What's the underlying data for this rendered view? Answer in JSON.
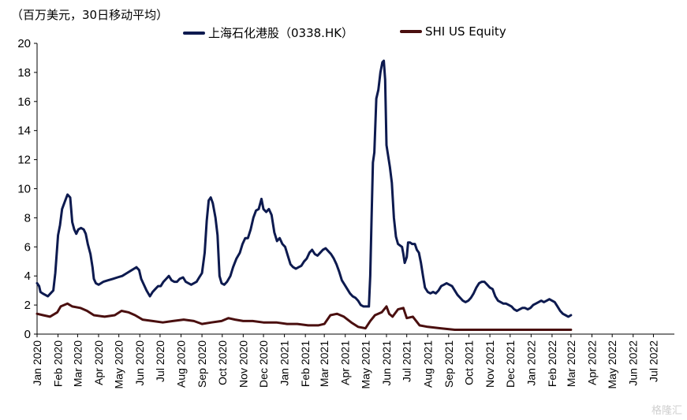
{
  "unit_label": "（百万美元，30日移动平均）",
  "watermark": "格隆汇",
  "chart_data": {
    "type": "line",
    "ylim": [
      0,
      20
    ],
    "yticks": [
      0,
      2,
      4,
      6,
      8,
      10,
      12,
      14,
      16,
      18,
      20
    ],
    "xlim": [
      "2020-01-01",
      "2022-08-01"
    ],
    "grid": false,
    "legend_position": "top",
    "x_tick_labels": [
      "Jan 2020",
      "Feb 2020",
      "Mar 2020",
      "Apr 2020",
      "May 2020",
      "Jun 2020",
      "Jul 2020",
      "Aug 2020",
      "Sep 2020",
      "Oct 2020",
      "Nov 2020",
      "Dec 2020",
      "Jan 2021",
      "Feb 2021",
      "Mar 2021",
      "Apr 2021",
      "May 2021",
      "Jun 2021",
      "Jul 2021",
      "Aug 2021",
      "Sep 2021",
      "Oct 2021",
      "Nov 2021",
      "Dec 2021",
      "Jan 2022",
      "Feb 2022",
      "Mar 2022",
      "Apr 2022",
      "May 2022",
      "Jun 2022",
      "Jul 2022"
    ],
    "x_tick_dates": [
      "2020-01-01",
      "2020-02-01",
      "2020-03-01",
      "2020-04-01",
      "2020-05-01",
      "2020-06-01",
      "2020-07-01",
      "2020-08-01",
      "2020-09-01",
      "2020-10-01",
      "2020-11-01",
      "2020-12-01",
      "2021-01-01",
      "2021-02-01",
      "2021-03-01",
      "2021-04-01",
      "2021-05-01",
      "2021-06-01",
      "2021-07-01",
      "2021-08-01",
      "2021-09-01",
      "2021-10-01",
      "2021-11-01",
      "2021-12-01",
      "2022-01-01",
      "2022-02-01",
      "2022-03-01",
      "2022-04-01",
      "2022-05-01",
      "2022-06-01",
      "2022-07-01"
    ],
    "series": [
      {
        "name": "上海石化港股（0338.HK）",
        "color": "#0d1a4f",
        "points": [
          [
            "2020-01-01",
            3.5
          ],
          [
            "2020-01-04",
            3.3
          ],
          [
            "2020-01-06",
            2.9
          ],
          [
            "2020-01-09",
            2.8
          ],
          [
            "2020-01-13",
            2.7
          ],
          [
            "2020-01-17",
            2.6
          ],
          [
            "2020-01-21",
            2.8
          ],
          [
            "2020-01-25",
            3.0
          ],
          [
            "2020-01-28",
            4.2
          ],
          [
            "2020-02-01",
            6.8
          ],
          [
            "2020-02-04",
            7.5
          ],
          [
            "2020-02-07",
            8.6
          ],
          [
            "2020-02-11",
            9.1
          ],
          [
            "2020-02-15",
            9.6
          ],
          [
            "2020-02-19",
            9.4
          ],
          [
            "2020-02-22",
            7.7
          ],
          [
            "2020-02-25",
            7.2
          ],
          [
            "2020-02-28",
            6.9
          ],
          [
            "2020-03-02",
            7.2
          ],
          [
            "2020-03-06",
            7.3
          ],
          [
            "2020-03-10",
            7.2
          ],
          [
            "2020-03-13",
            6.9
          ],
          [
            "2020-03-16",
            6.2
          ],
          [
            "2020-03-20",
            5.5
          ],
          [
            "2020-03-23",
            4.6
          ],
          [
            "2020-03-25",
            3.8
          ],
          [
            "2020-03-28",
            3.5
          ],
          [
            "2020-04-01",
            3.4
          ],
          [
            "2020-04-08",
            3.6
          ],
          [
            "2020-04-15",
            3.7
          ],
          [
            "2020-04-22",
            3.8
          ],
          [
            "2020-04-29",
            3.9
          ],
          [
            "2020-05-06",
            4.0
          ],
          [
            "2020-05-13",
            4.2
          ],
          [
            "2020-05-20",
            4.4
          ],
          [
            "2020-05-27",
            4.6
          ],
          [
            "2020-05-31",
            4.4
          ],
          [
            "2020-06-03",
            3.8
          ],
          [
            "2020-06-07",
            3.4
          ],
          [
            "2020-06-11",
            3.0
          ],
          [
            "2020-06-16",
            2.6
          ],
          [
            "2020-06-20",
            2.9
          ],
          [
            "2020-06-24",
            3.1
          ],
          [
            "2020-06-28",
            3.3
          ],
          [
            "2020-07-02",
            3.3
          ],
          [
            "2020-07-06",
            3.6
          ],
          [
            "2020-07-10",
            3.8
          ],
          [
            "2020-07-14",
            4.0
          ],
          [
            "2020-07-18",
            3.7
          ],
          [
            "2020-07-22",
            3.6
          ],
          [
            "2020-07-26",
            3.6
          ],
          [
            "2020-07-30",
            3.8
          ],
          [
            "2020-08-04",
            3.9
          ],
          [
            "2020-08-08",
            3.6
          ],
          [
            "2020-08-12",
            3.5
          ],
          [
            "2020-08-16",
            3.4
          ],
          [
            "2020-08-20",
            3.5
          ],
          [
            "2020-08-24",
            3.6
          ],
          [
            "2020-08-28",
            3.9
          ],
          [
            "2020-09-01",
            4.2
          ],
          [
            "2020-09-05",
            5.6
          ],
          [
            "2020-09-08",
            7.8
          ],
          [
            "2020-09-11",
            9.2
          ],
          [
            "2020-09-14",
            9.4
          ],
          [
            "2020-09-17",
            9.0
          ],
          [
            "2020-09-21",
            8.0
          ],
          [
            "2020-09-24",
            6.8
          ],
          [
            "2020-09-27",
            4.0
          ],
          [
            "2020-09-30",
            3.5
          ],
          [
            "2020-10-04",
            3.4
          ],
          [
            "2020-10-08",
            3.6
          ],
          [
            "2020-10-13",
            4.0
          ],
          [
            "2020-10-17",
            4.6
          ],
          [
            "2020-10-22",
            5.2
          ],
          [
            "2020-10-27",
            5.6
          ],
          [
            "2020-10-31",
            6.2
          ],
          [
            "2020-11-04",
            6.6
          ],
          [
            "2020-11-08",
            6.6
          ],
          [
            "2020-11-12",
            7.2
          ],
          [
            "2020-11-16",
            8.0
          ],
          [
            "2020-11-20",
            8.5
          ],
          [
            "2020-11-24",
            8.6
          ],
          [
            "2020-11-28",
            9.3
          ],
          [
            "2020-12-01",
            8.6
          ],
          [
            "2020-12-05",
            8.4
          ],
          [
            "2020-12-09",
            8.6
          ],
          [
            "2020-12-13",
            8.2
          ],
          [
            "2020-12-17",
            7.0
          ],
          [
            "2020-12-21",
            6.4
          ],
          [
            "2020-12-25",
            6.6
          ],
          [
            "2020-12-29",
            6.2
          ],
          [
            "2021-01-02",
            6.0
          ],
          [
            "2021-01-06",
            5.4
          ],
          [
            "2021-01-10",
            4.8
          ],
          [
            "2021-01-14",
            4.6
          ],
          [
            "2021-01-18",
            4.5
          ],
          [
            "2021-01-22",
            4.6
          ],
          [
            "2021-01-26",
            4.7
          ],
          [
            "2021-01-30",
            5.0
          ],
          [
            "2021-02-03",
            5.2
          ],
          [
            "2021-02-07",
            5.6
          ],
          [
            "2021-02-11",
            5.8
          ],
          [
            "2021-02-15",
            5.5
          ],
          [
            "2021-02-19",
            5.4
          ],
          [
            "2021-02-23",
            5.6
          ],
          [
            "2021-02-27",
            5.8
          ],
          [
            "2021-03-03",
            5.9
          ],
          [
            "2021-03-07",
            5.7
          ],
          [
            "2021-03-11",
            5.5
          ],
          [
            "2021-03-15",
            5.2
          ],
          [
            "2021-03-19",
            4.8
          ],
          [
            "2021-03-23",
            4.3
          ],
          [
            "2021-03-27",
            3.7
          ],
          [
            "2021-03-31",
            3.4
          ],
          [
            "2021-04-04",
            3.1
          ],
          [
            "2021-04-08",
            2.8
          ],
          [
            "2021-04-12",
            2.6
          ],
          [
            "2021-04-16",
            2.5
          ],
          [
            "2021-04-20",
            2.3
          ],
          [
            "2021-04-24",
            2.0
          ],
          [
            "2021-04-28",
            1.9
          ],
          [
            "2021-05-02",
            1.9
          ],
          [
            "2021-05-06",
            1.9
          ],
          [
            "2021-05-08",
            4.0
          ],
          [
            "2021-05-10",
            8.0
          ],
          [
            "2021-05-12",
            11.8
          ],
          [
            "2021-05-14",
            12.5
          ],
          [
            "2021-05-17",
            16.2
          ],
          [
            "2021-05-20",
            16.8
          ],
          [
            "2021-05-23",
            18.0
          ],
          [
            "2021-05-26",
            18.7
          ],
          [
            "2021-05-28",
            18.8
          ],
          [
            "2021-05-30",
            17.5
          ],
          [
            "2021-06-01",
            13.0
          ],
          [
            "2021-06-03",
            12.4
          ],
          [
            "2021-06-06",
            11.5
          ],
          [
            "2021-06-09",
            10.4
          ],
          [
            "2021-06-12",
            8.0
          ],
          [
            "2021-06-15",
            6.7
          ],
          [
            "2021-06-18",
            6.2
          ],
          [
            "2021-06-21",
            6.1
          ],
          [
            "2021-06-24",
            6.0
          ],
          [
            "2021-06-26",
            5.5
          ],
          [
            "2021-06-28",
            4.9
          ],
          [
            "2021-07-01",
            5.3
          ],
          [
            "2021-07-03",
            6.3
          ],
          [
            "2021-07-06",
            6.3
          ],
          [
            "2021-07-09",
            6.2
          ],
          [
            "2021-07-13",
            6.2
          ],
          [
            "2021-07-16",
            5.8
          ],
          [
            "2021-07-19",
            5.6
          ],
          [
            "2021-07-22",
            4.9
          ],
          [
            "2021-07-25",
            4.0
          ],
          [
            "2021-07-28",
            3.2
          ],
          [
            "2021-08-01",
            2.9
          ],
          [
            "2021-08-05",
            2.8
          ],
          [
            "2021-08-09",
            2.9
          ],
          [
            "2021-08-13",
            2.8
          ],
          [
            "2021-08-17",
            3.0
          ],
          [
            "2021-08-21",
            3.3
          ],
          [
            "2021-08-25",
            3.4
          ],
          [
            "2021-08-29",
            3.5
          ],
          [
            "2021-09-02",
            3.4
          ],
          [
            "2021-09-06",
            3.3
          ],
          [
            "2021-09-10",
            3.0
          ],
          [
            "2021-09-14",
            2.7
          ],
          [
            "2021-09-18",
            2.5
          ],
          [
            "2021-09-22",
            2.3
          ],
          [
            "2021-09-26",
            2.2
          ],
          [
            "2021-09-30",
            2.3
          ],
          [
            "2021-10-04",
            2.5
          ],
          [
            "2021-10-08",
            2.8
          ],
          [
            "2021-10-12",
            3.2
          ],
          [
            "2021-10-16",
            3.5
          ],
          [
            "2021-10-20",
            3.6
          ],
          [
            "2021-10-24",
            3.6
          ],
          [
            "2021-10-28",
            3.4
          ],
          [
            "2021-11-01",
            3.2
          ],
          [
            "2021-11-05",
            3.1
          ],
          [
            "2021-11-09",
            2.6
          ],
          [
            "2021-11-13",
            2.3
          ],
          [
            "2021-11-17",
            2.2
          ],
          [
            "2021-11-21",
            2.1
          ],
          [
            "2021-11-25",
            2.1
          ],
          [
            "2021-11-29",
            2.0
          ],
          [
            "2021-12-03",
            1.9
          ],
          [
            "2021-12-07",
            1.7
          ],
          [
            "2021-12-11",
            1.6
          ],
          [
            "2021-12-15",
            1.7
          ],
          [
            "2021-12-19",
            1.8
          ],
          [
            "2021-12-23",
            1.8
          ],
          [
            "2021-12-27",
            1.7
          ],
          [
            "2021-12-31",
            1.8
          ],
          [
            "2022-01-04",
            2.0
          ],
          [
            "2022-01-08",
            2.1
          ],
          [
            "2022-01-12",
            2.2
          ],
          [
            "2022-01-16",
            2.3
          ],
          [
            "2022-01-20",
            2.2
          ],
          [
            "2022-01-24",
            2.3
          ],
          [
            "2022-01-28",
            2.4
          ],
          [
            "2022-02-01",
            2.3
          ],
          [
            "2022-02-05",
            2.2
          ],
          [
            "2022-02-09",
            1.9
          ],
          [
            "2022-02-13",
            1.6
          ],
          [
            "2022-02-17",
            1.4
          ],
          [
            "2022-02-21",
            1.3
          ],
          [
            "2022-02-25",
            1.2
          ],
          [
            "2022-03-01",
            1.3
          ]
        ]
      },
      {
        "name": "SHI US Equity",
        "color": "#4a0f0f",
        "points": [
          [
            "2020-01-01",
            1.4
          ],
          [
            "2020-01-10",
            1.3
          ],
          [
            "2020-01-20",
            1.2
          ],
          [
            "2020-01-31",
            1.5
          ],
          [
            "2020-02-05",
            1.9
          ],
          [
            "2020-02-15",
            2.1
          ],
          [
            "2020-02-22",
            1.9
          ],
          [
            "2020-03-05",
            1.8
          ],
          [
            "2020-03-15",
            1.6
          ],
          [
            "2020-03-25",
            1.3
          ],
          [
            "2020-04-10",
            1.2
          ],
          [
            "2020-04-25",
            1.3
          ],
          [
            "2020-05-05",
            1.6
          ],
          [
            "2020-05-15",
            1.5
          ],
          [
            "2020-05-25",
            1.3
          ],
          [
            "2020-06-05",
            1.0
          ],
          [
            "2020-06-20",
            0.9
          ],
          [
            "2020-07-05",
            0.8
          ],
          [
            "2020-07-20",
            0.9
          ],
          [
            "2020-08-05",
            1.0
          ],
          [
            "2020-08-20",
            0.9
          ],
          [
            "2020-09-01",
            0.7
          ],
          [
            "2020-09-15",
            0.8
          ],
          [
            "2020-09-30",
            0.9
          ],
          [
            "2020-10-10",
            1.1
          ],
          [
            "2020-10-20",
            1.0
          ],
          [
            "2020-11-01",
            0.9
          ],
          [
            "2020-11-15",
            0.9
          ],
          [
            "2020-12-01",
            0.8
          ],
          [
            "2020-12-20",
            0.8
          ],
          [
            "2021-01-05",
            0.7
          ],
          [
            "2021-01-20",
            0.7
          ],
          [
            "2021-02-05",
            0.6
          ],
          [
            "2021-02-20",
            0.6
          ],
          [
            "2021-03-01",
            0.7
          ],
          [
            "2021-03-10",
            1.3
          ],
          [
            "2021-03-20",
            1.4
          ],
          [
            "2021-03-30",
            1.2
          ],
          [
            "2021-04-10",
            0.8
          ],
          [
            "2021-04-20",
            0.5
          ],
          [
            "2021-05-01",
            0.4
          ],
          [
            "2021-05-08",
            0.9
          ],
          [
            "2021-05-15",
            1.3
          ],
          [
            "2021-05-25",
            1.5
          ],
          [
            "2021-06-01",
            1.9
          ],
          [
            "2021-06-05",
            1.4
          ],
          [
            "2021-06-10",
            1.2
          ],
          [
            "2021-06-18",
            1.7
          ],
          [
            "2021-06-26",
            1.8
          ],
          [
            "2021-07-01",
            1.1
          ],
          [
            "2021-07-10",
            1.2
          ],
          [
            "2021-07-20",
            0.6
          ],
          [
            "2021-08-01",
            0.5
          ],
          [
            "2021-08-20",
            0.4
          ],
          [
            "2021-09-10",
            0.3
          ],
          [
            "2021-10-01",
            0.3
          ],
          [
            "2021-11-01",
            0.3
          ],
          [
            "2021-12-01",
            0.3
          ],
          [
            "2022-01-01",
            0.3
          ],
          [
            "2022-02-01",
            0.3
          ],
          [
            "2022-03-01",
            0.3
          ]
        ]
      }
    ]
  }
}
